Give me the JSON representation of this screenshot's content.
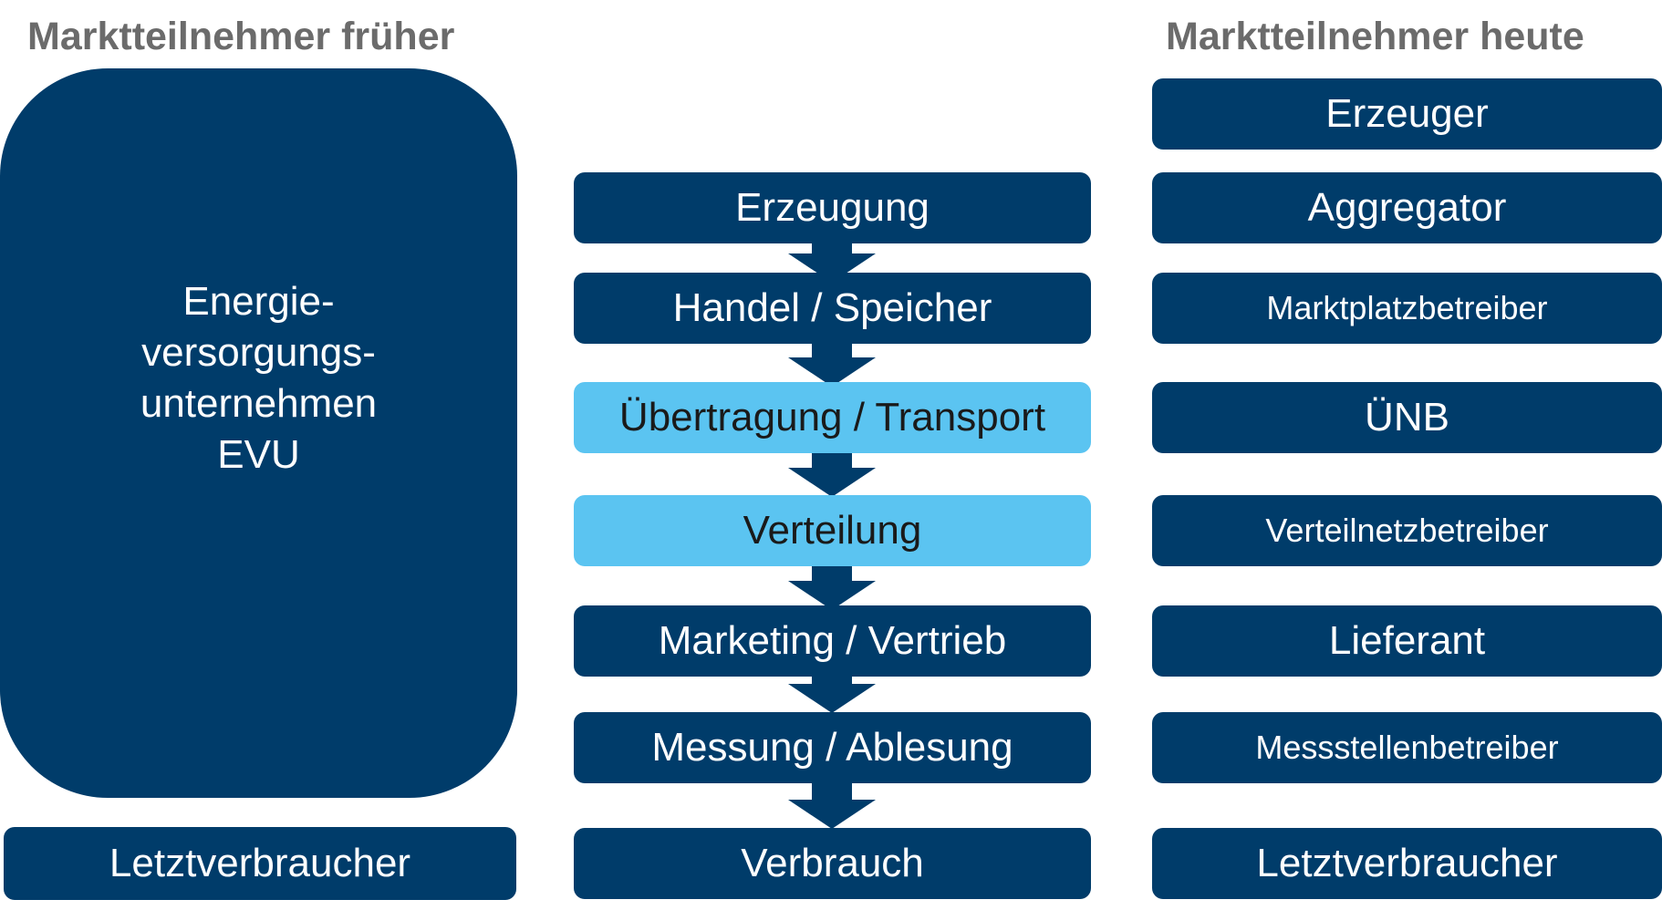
{
  "headings": {
    "left": "Marktteilnehmer früher",
    "right": "Marktteilnehmer heute"
  },
  "left": {
    "evu_lines": [
      "Energie-",
      "versorgungs-",
      "unternehmen",
      "EVU"
    ],
    "consumer": "Letztverbraucher"
  },
  "middle": {
    "steps": [
      {
        "label": "Erzeugung",
        "highlight": false
      },
      {
        "label": "Handel / Speicher",
        "highlight": false
      },
      {
        "label": "Übertragung / Transport",
        "highlight": true
      },
      {
        "label": "Verteilung",
        "highlight": true
      },
      {
        "label": "Marketing / Vertrieb",
        "highlight": false
      },
      {
        "label": "Messung / Ablesung",
        "highlight": false
      },
      {
        "label": "Verbrauch",
        "highlight": false
      }
    ]
  },
  "right": {
    "items": [
      "Erzeuger",
      "Aggregator",
      "Marktplatzbetreiber",
      "ÜNB",
      "Verteilnetzbetreiber",
      "Lieferant",
      "Messstellenbetreiber",
      "Letztverbraucher"
    ]
  },
  "colors": {
    "dark_blue": "#003c6a",
    "light_blue": "#5bc4f1",
    "heading_gray": "#6b6b6b"
  },
  "icons": {
    "flow_arrow": "down-arrow-icon"
  }
}
